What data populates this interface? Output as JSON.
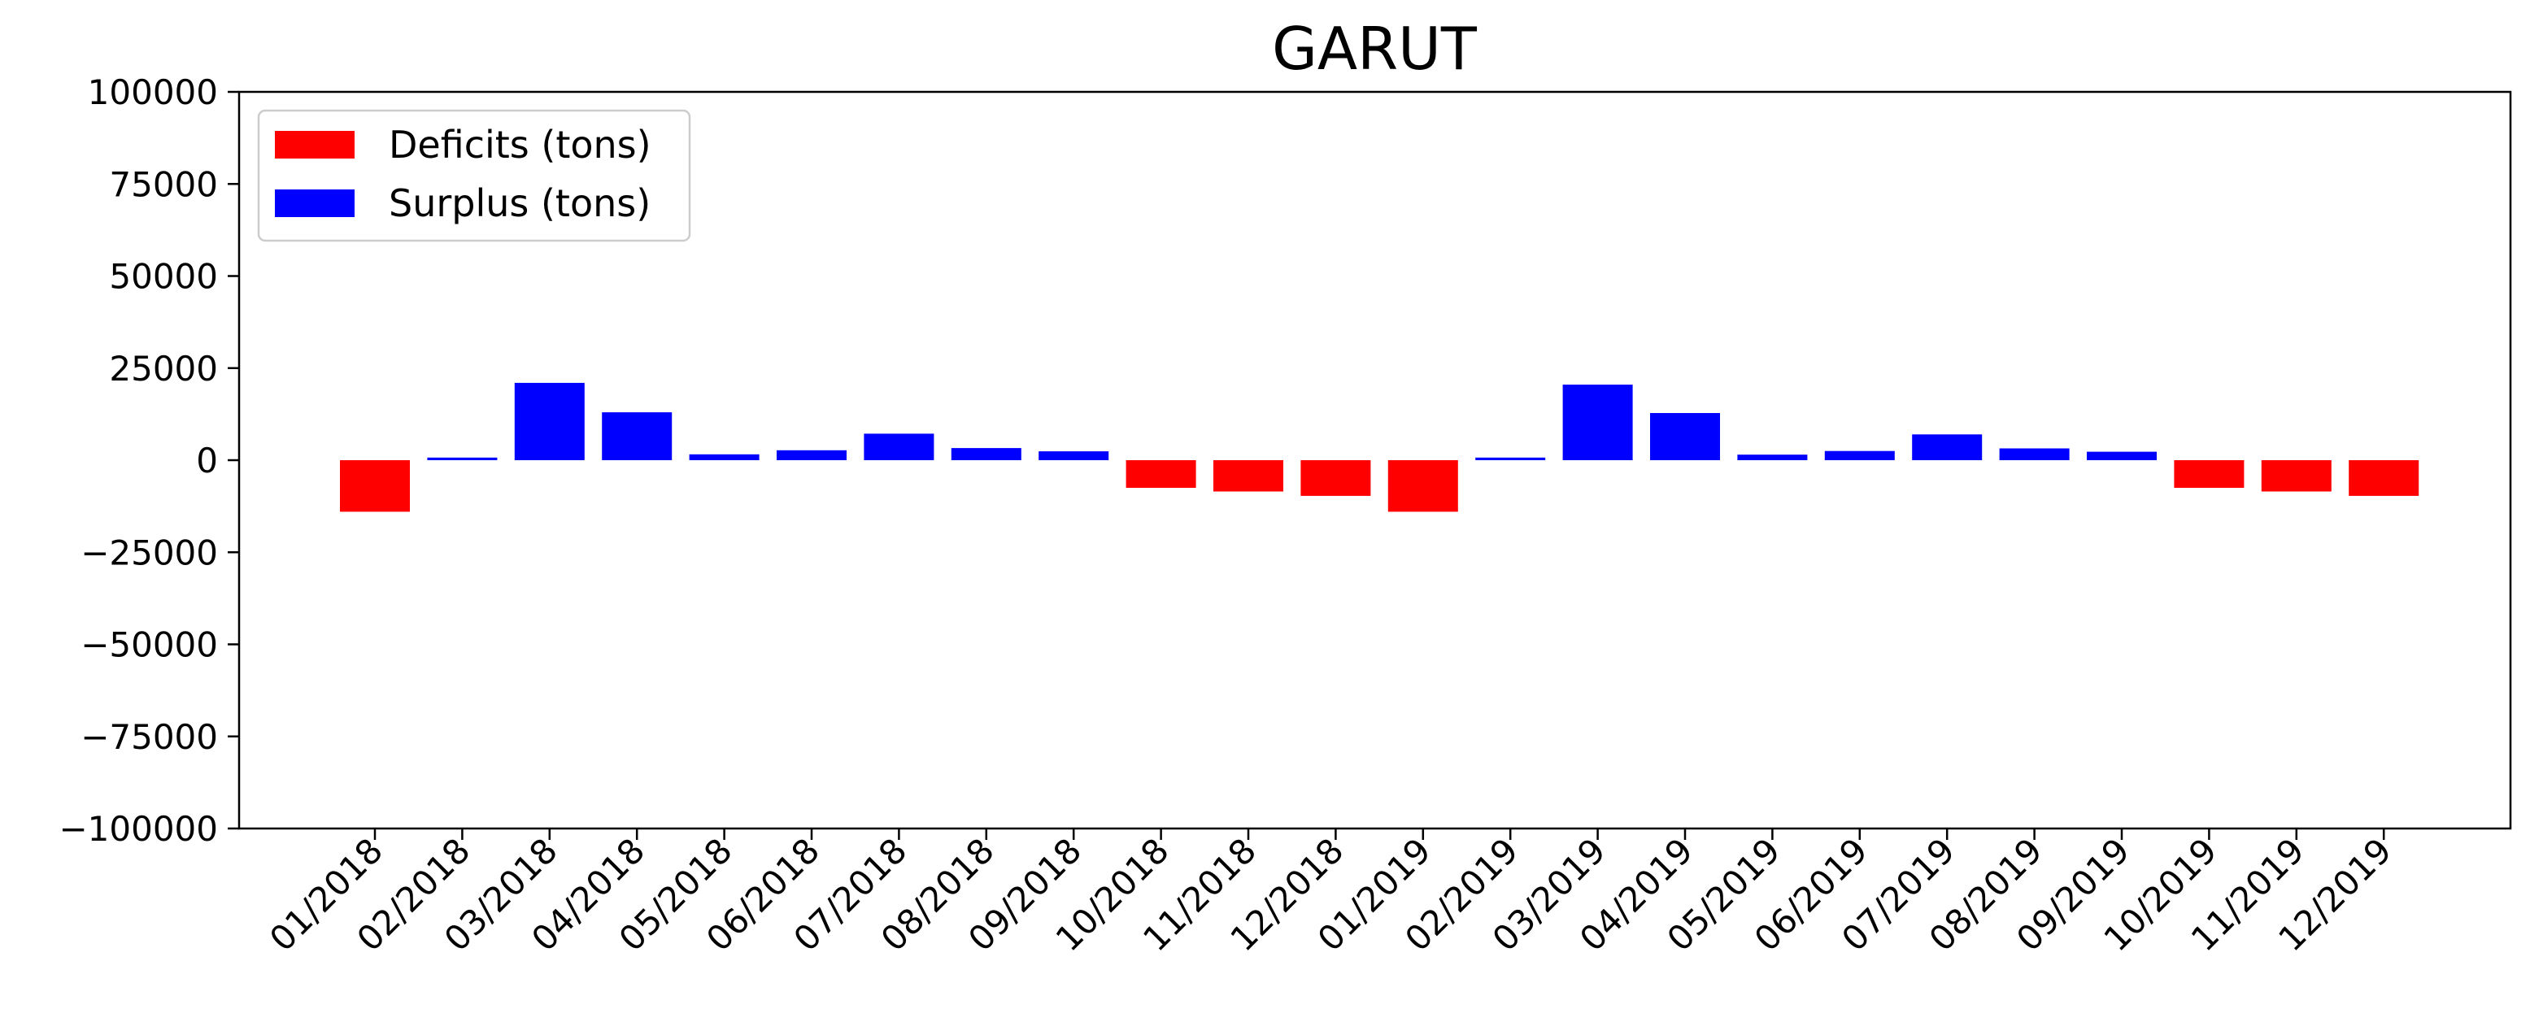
{
  "chart_data": {
    "type": "bar",
    "title": "GARUT",
    "xlabel": "",
    "ylabel": "",
    "ylim": [
      -100000,
      100000
    ],
    "yticks": [
      100000,
      75000,
      50000,
      25000,
      0,
      -25000,
      -50000,
      -75000,
      -100000
    ],
    "ytick_labels": [
      "100000",
      "75000",
      "50000",
      "25000",
      "0",
      "−25000",
      "−50000",
      "−75000",
      "−100000"
    ],
    "grid": false,
    "legend_position": "top-left",
    "categories": [
      "01/2018",
      "02/2018",
      "03/2018",
      "04/2018",
      "05/2018",
      "06/2018",
      "07/2018",
      "08/2018",
      "09/2018",
      "10/2018",
      "11/2018",
      "12/2018",
      "01/2019",
      "02/2019",
      "03/2019",
      "04/2019",
      "05/2019",
      "06/2019",
      "07/2019",
      "08/2019",
      "09/2019",
      "10/2019",
      "11/2019",
      "12/2019"
    ],
    "series": [
      {
        "name": "Deficits (tons)",
        "color": "#ff0000",
        "values": [
          -14000,
          null,
          null,
          null,
          null,
          null,
          null,
          null,
          null,
          -7500,
          -8500,
          -9700,
          -14000,
          null,
          null,
          null,
          null,
          null,
          null,
          null,
          null,
          -7500,
          -8500,
          -9700
        ]
      },
      {
        "name": "Surplus (tons)",
        "color": "#0000ff",
        "values": [
          null,
          700,
          21000,
          13000,
          1600,
          2700,
          7200,
          3300,
          2400,
          null,
          null,
          null,
          null,
          700,
          20500,
          12800,
          1500,
          2500,
          7000,
          3200,
          2300,
          null,
          null,
          null
        ]
      }
    ]
  }
}
